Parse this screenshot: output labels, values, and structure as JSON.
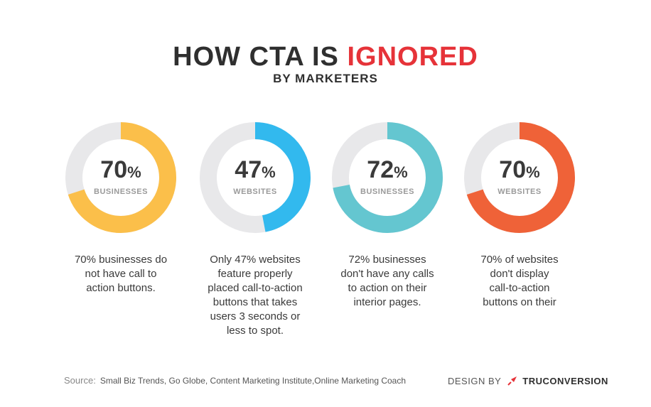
{
  "header": {
    "title_part1": "HOW CTA IS ",
    "title_part2": "IGNORED",
    "subtitle": "BY MARKETERS"
  },
  "colors": {
    "track": "#e8e8ea",
    "accent_title": "#e63339"
  },
  "chart_data": [
    {
      "type": "pie",
      "variant": "donut",
      "value": 70,
      "display_value": "70",
      "unit": "%",
      "label": "BUSINESSES",
      "color": "#fbbf4a",
      "description_lines": [
        "70% businesses do",
        "not have call to",
        "action buttons."
      ]
    },
    {
      "type": "pie",
      "variant": "donut",
      "value": 47,
      "display_value": "47",
      "unit": "%",
      "label": "WEBSITES",
      "color": "#32b9ee",
      "description_lines": [
        "Only 47% websites",
        "feature properly",
        "placed call-to-action",
        "buttons that takes",
        "users 3 seconds or",
        "less to spot."
      ]
    },
    {
      "type": "pie",
      "variant": "donut",
      "value": 72,
      "display_value": "72",
      "unit": "%",
      "label": "BUSINESSES",
      "color": "#64c6d0",
      "description_lines": [
        "72% businesses",
        "don't have any calls",
        "to action on their",
        "interior pages."
      ]
    },
    {
      "type": "pie",
      "variant": "donut",
      "value": 70,
      "display_value": "70",
      "unit": "%",
      "label": "WEBSITES",
      "color": "#ef6238",
      "description_lines": [
        "70% of websites",
        "don't display",
        "call-to-action",
        "buttons on their"
      ]
    }
  ],
  "footer": {
    "source_label": "Source:",
    "source_text": "Small Biz Trends, Go Globe, Content Marketing Institute,Online Marketing Coach",
    "design_by": "DESIGN BY",
    "brand": "TRUCONVERSION",
    "logo_icon": "truconversion-logo-icon"
  }
}
